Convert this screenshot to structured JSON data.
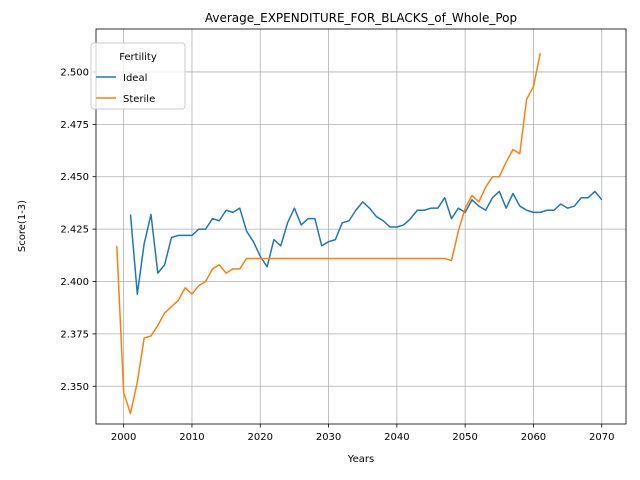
{
  "chart_data": {
    "type": "line",
    "title": "Average_EXPENDITURE_FOR_BLACKS_of_Whole_Pop",
    "xlabel": "Years",
    "ylabel": "Score(1-3)",
    "xlim": [
      1995.95,
      2073.55
    ],
    "ylim": [
      2.332,
      2.5205
    ],
    "xticks": [
      2000,
      2010,
      2020,
      2030,
      2040,
      2050,
      2060,
      2070
    ],
    "xtick_labels": [
      "2000",
      "2010",
      "2020",
      "2030",
      "2040",
      "2050",
      "2060",
      "2070"
    ],
    "yticks": [
      2.35,
      2.375,
      2.4,
      2.425,
      2.45,
      2.475,
      2.5
    ],
    "ytick_labels": [
      "2.350",
      "2.375",
      "2.400",
      "2.425",
      "2.450",
      "2.475",
      "2.500"
    ],
    "grid": true,
    "legend": {
      "title": "Fertility",
      "placement": "top-left"
    },
    "series": [
      {
        "name": "Ideal",
        "color": "#1f77b4",
        "x": [
          2001,
          2002,
          2003,
          2004,
          2005,
          2006,
          2007,
          2008,
          2009,
          2010,
          2011,
          2012,
          2013,
          2014,
          2015,
          2016,
          2017,
          2018,
          2019,
          2020,
          2021,
          2022,
          2023,
          2024,
          2025,
          2026,
          2027,
          2028,
          2029,
          2030,
          2031,
          2032,
          2033,
          2034,
          2035,
          2036,
          2037,
          2038,
          2039,
          2040,
          2041,
          2042,
          2043,
          2044,
          2045,
          2046,
          2047,
          2048,
          2049,
          2050,
          2051,
          2052,
          2053,
          2054,
          2055,
          2056,
          2057,
          2058,
          2059,
          2060,
          2061,
          2062,
          2063,
          2064,
          2065,
          2066,
          2067,
          2068,
          2069,
          2070
        ],
        "y": [
          2.432,
          2.394,
          2.418,
          2.432,
          2.404,
          2.408,
          2.421,
          2.422,
          2.422,
          2.422,
          2.425,
          2.425,
          2.43,
          2.429,
          2.434,
          2.433,
          2.435,
          2.424,
          2.419,
          2.412,
          2.407,
          2.42,
          2.417,
          2.428,
          2.435,
          2.427,
          2.43,
          2.43,
          2.417,
          2.419,
          2.42,
          2.428,
          2.429,
          2.434,
          2.438,
          2.435,
          2.431,
          2.429,
          2.426,
          2.426,
          2.427,
          2.43,
          2.434,
          2.434,
          2.435,
          2.435,
          2.44,
          2.43,
          2.435,
          2.433,
          2.439,
          2.436,
          2.434,
          2.44,
          2.443,
          2.435,
          2.442,
          2.436,
          2.434,
          2.433,
          2.433,
          2.434,
          2.434,
          2.437,
          2.435,
          2.436,
          2.44,
          2.44,
          2.443,
          2.439
        ]
      },
      {
        "name": "Sterile",
        "color": "#ff7f0e",
        "x": [
          1999,
          2000,
          2001,
          2002,
          2003,
          2004,
          2005,
          2006,
          2007,
          2008,
          2009,
          2010,
          2011,
          2012,
          2013,
          2014,
          2015,
          2016,
          2017,
          2018,
          2019,
          2020,
          2021,
          2022,
          2023,
          2024,
          2025,
          2026,
          2027,
          2028,
          2029,
          2030,
          2031,
          2032,
          2033,
          2034,
          2035,
          2036,
          2037,
          2038,
          2039,
          2040,
          2041,
          2042,
          2043,
          2044,
          2045,
          2046,
          2047,
          2048,
          2049,
          2050,
          2051,
          2052,
          2053,
          2054,
          2055,
          2056,
          2057,
          2058,
          2059,
          2060,
          2061
        ],
        "y": [
          2.417,
          2.347,
          2.337,
          2.352,
          2.373,
          2.374,
          2.379,
          2.385,
          2.388,
          2.391,
          2.397,
          2.394,
          2.398,
          2.4,
          2.406,
          2.408,
          2.404,
          2.406,
          2.406,
          2.411,
          2.411,
          2.411,
          2.411,
          2.411,
          2.411,
          2.411,
          2.411,
          2.411,
          2.411,
          2.411,
          2.411,
          2.411,
          2.411,
          2.411,
          2.411,
          2.411,
          2.411,
          2.411,
          2.411,
          2.411,
          2.411,
          2.411,
          2.411,
          2.411,
          2.411,
          2.411,
          2.411,
          2.411,
          2.411,
          2.41,
          2.424,
          2.435,
          2.441,
          2.438,
          2.445,
          2.45,
          2.45,
          2.457,
          2.463,
          2.461,
          2.487,
          2.493,
          2.509
        ]
      }
    ]
  }
}
